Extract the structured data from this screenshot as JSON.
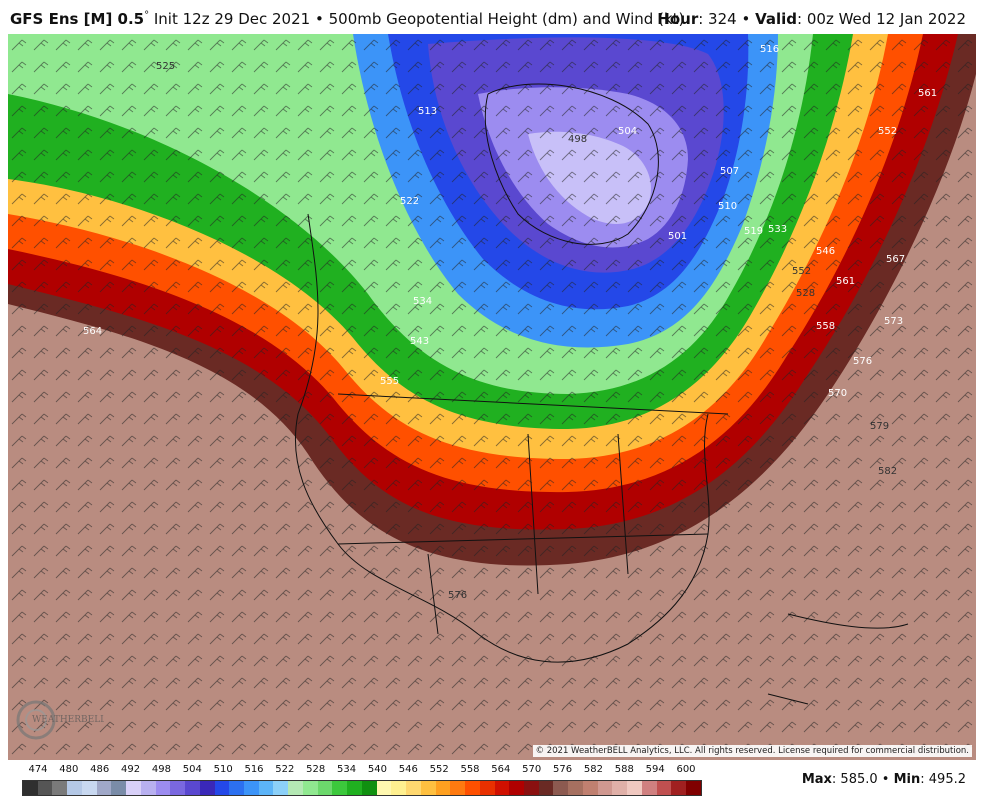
{
  "header": {
    "model": "GFS Ens [M] 0.5",
    "degree_symbol": "°",
    "init": "Init 12z 29 Dec 2021",
    "bullet": "•",
    "product": "500mb Geopotential Height (dm) and Wind (kt)",
    "hour_label": "Hour",
    "hour_value": ": 324",
    "valid_label": "Valid",
    "valid_value": ": 00z Wed 12 Jan 2022"
  },
  "map": {
    "contour_labels": [
      "525",
      "516",
      "513",
      "522",
      "504",
      "498",
      "501",
      "507",
      "510",
      "519",
      "533",
      "534",
      "543",
      "552",
      "558",
      "555",
      "561",
      "567",
      "564",
      "546",
      "552",
      "561",
      "573",
      "570",
      "576",
      "579",
      "582",
      "576",
      "528"
    ],
    "copyright": "© 2021 WeatherBELL Analytics, LLC. All rights reserved. License required for commercial distribution.",
    "logo_text": "WEATHERBELL"
  },
  "legend": {
    "ticks": [
      "474",
      "480",
      "486",
      "492",
      "498",
      "504",
      "510",
      "516",
      "522",
      "528",
      "534",
      "540",
      "546",
      "552",
      "558",
      "564",
      "570",
      "576",
      "582",
      "588",
      "594",
      "600"
    ],
    "colors": [
      "#2f2f2f",
      "#555555",
      "#7a7a7a",
      "#b4c8e6",
      "#c8d8f0",
      "#a0a8c8",
      "#7a8ca8",
      "#d8d0f8",
      "#b8b0f0",
      "#9c8cf0",
      "#7a68e0",
      "#5a48d0",
      "#3a28b8",
      "#2448e8",
      "#2c70f0",
      "#3c94f8",
      "#5cb4f8",
      "#8cd0f8",
      "#b4e8b4",
      "#90e890",
      "#6cd86c",
      "#3cc83c",
      "#20b020",
      "#109010",
      "#fff8b0",
      "#fff090",
      "#ffd870",
      "#ffc040",
      "#ffa020",
      "#ff7a10",
      "#ff5000",
      "#e83000",
      "#d01000",
      "#b00000",
      "#8a1010",
      "#6a2a24",
      "#8c5a50",
      "#a67060",
      "#c08070",
      "#d09890",
      "#e0b0a8",
      "#f0c8c0",
      "#d08080",
      "#c05050",
      "#a02020",
      "#800000"
    ],
    "max_label": "Max",
    "max_value": ": 585.0",
    "min_label": "Min",
    "min_value": ": 495.2"
  }
}
